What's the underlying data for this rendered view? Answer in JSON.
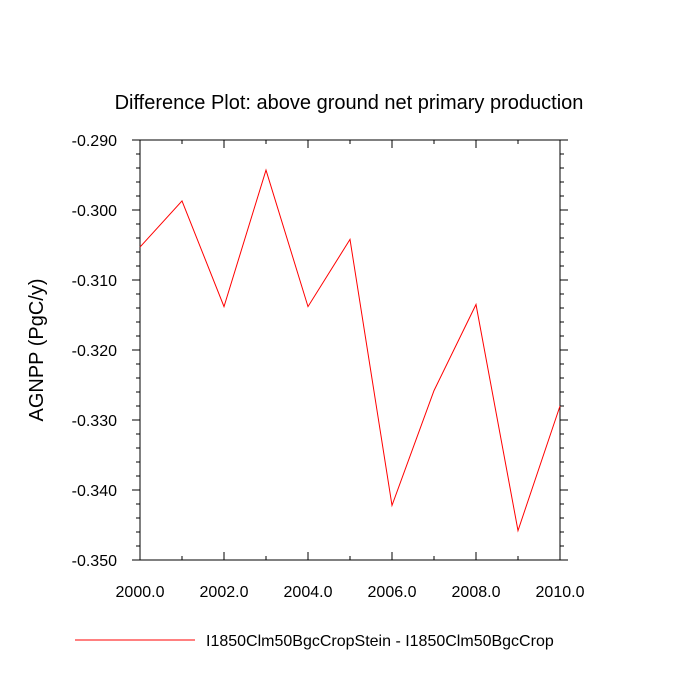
{
  "chart_data": {
    "type": "line",
    "title": "Difference Plot: above ground net primary production",
    "xlabel": "",
    "ylabel": "AGNPP  (PgC/y)",
    "xlim": [
      2000,
      2010
    ],
    "ylim": [
      -0.35,
      -0.29
    ],
    "x_ticks": [
      "2000.0",
      "2002.0",
      "2004.0",
      "2006.0",
      "2008.0",
      "2010.0"
    ],
    "y_ticks": [
      "-0.290",
      "-0.300",
      "-0.310",
      "-0.320",
      "-0.330",
      "-0.340",
      "-0.350"
    ],
    "grid": false,
    "legend_position": "bottom",
    "series": [
      {
        "name": "I1850Clm50BgcCropStein - I1850Clm50BgcCrop",
        "color": "#ff0000",
        "x": [
          2000,
          2001,
          2002,
          2003,
          2004,
          2005,
          2006,
          2007,
          2008,
          2009,
          2010
        ],
        "y": [
          -0.3053,
          -0.2987,
          -0.3138,
          -0.2943,
          -0.3138,
          -0.3042,
          -0.3422,
          -0.3258,
          -0.3135,
          -0.3458,
          -0.328
        ]
      }
    ]
  }
}
